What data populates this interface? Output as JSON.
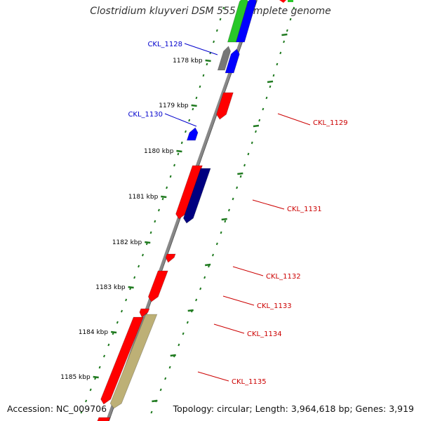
{
  "title": "Clostridium kluyveri DSM 555, complete genome",
  "footer": {
    "accession": "Accession: NC_009706",
    "summary": "Topology: circular; Length: 3,964,618 bp; Genes: 3,919"
  },
  "colors": {
    "backbone": "#888888",
    "ticks": "#1f7a1f",
    "forward_cds": "#ff0000",
    "reverse_cds": "#0000ff",
    "dark_cds": "#000080",
    "rna": "#28c828",
    "pseudo": "#777777",
    "other": "#bdb076",
    "label_blue": "#0000cc",
    "label_red": "#cc0000"
  },
  "scale_labels": [
    "1178 kbp",
    "1179 kbp",
    "1180 kbp",
    "1181 kbp",
    "1182 kbp",
    "1183 kbp",
    "1184 kbp",
    "1185 kbp"
  ],
  "gene_labels": [
    {
      "text": "CKL_1128",
      "color": "blue"
    },
    {
      "text": "CKL_1130",
      "color": "blue"
    },
    {
      "text": "CKL_1129",
      "color": "red"
    },
    {
      "text": "CKL_1131",
      "color": "red"
    },
    {
      "text": "CKL_1132",
      "color": "red"
    },
    {
      "text": "CKL_1133",
      "color": "red"
    },
    {
      "text": "CKL_1134",
      "color": "red"
    },
    {
      "text": "CKL_1135",
      "color": "red"
    }
  ]
}
